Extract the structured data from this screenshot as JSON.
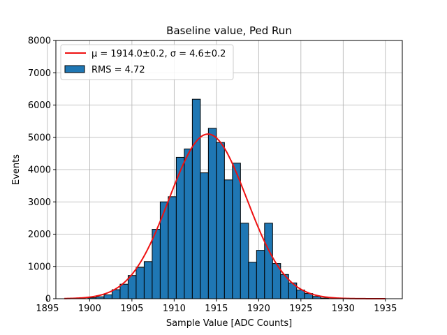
{
  "chart_data": {
    "type": "bar",
    "title": "Baseline value, Ped Run",
    "xlabel": "Sample Value [ADC Counts]",
    "ylabel": "Events",
    "xlim": [
      1896,
      1937
    ],
    "ylim": [
      0,
      8000
    ],
    "x_ticks": [
      1895,
      1900,
      1905,
      1910,
      1915,
      1920,
      1925,
      1930,
      1935
    ],
    "y_ticks": [
      0,
      1000,
      2000,
      3000,
      4000,
      5000,
      6000,
      7000,
      8000
    ],
    "x_tick_labels": [
      "1895",
      "1900",
      "1905",
      "1910",
      "1915",
      "1920",
      "1925",
      "1930",
      "1935"
    ],
    "y_tick_labels": [
      "0",
      "1000",
      "2000",
      "3000",
      "4000",
      "5000",
      "6000",
      "7000",
      "8000"
    ],
    "grid": true,
    "legend_position": "top-left",
    "legend": [
      {
        "label": "μ = 1914.0±0.2, σ = 4.6±0.2",
        "type": "line",
        "color": "#ee1111"
      },
      {
        "label": "RMS = 4.72",
        "type": "patch",
        "color": "#1f77b4"
      }
    ],
    "histogram": {
      "name": "RMS = 4.72",
      "color": "#1f77b4",
      "bin_edges": [
        1896.0,
        1896.95,
        1897.9,
        1898.85,
        1899.8,
        1900.75,
        1901.7,
        1902.65,
        1903.6,
        1904.55,
        1905.5,
        1906.45,
        1907.4,
        1908.35,
        1909.3,
        1910.25,
        1911.2,
        1912.15,
        1913.1,
        1914.05,
        1915.0,
        1915.95,
        1916.9,
        1917.85,
        1918.8,
        1919.75,
        1920.7,
        1921.65,
        1922.6,
        1923.55,
        1924.5,
        1925.45,
        1926.4,
        1927.35,
        1928.3,
        1929.25
      ],
      "counts": [
        0,
        0,
        0,
        0,
        30,
        60,
        120,
        280,
        450,
        720,
        970,
        1150,
        2150,
        3000,
        3160,
        4380,
        4640,
        6180,
        3900,
        5280,
        4840,
        3680,
        4200,
        2340,
        1130,
        1500,
        2340,
        1090,
        750,
        490,
        270,
        160,
        70,
        20,
        5
      ]
    },
    "fit": {
      "name": "μ = 1914.0±0.2, σ = 4.6±0.2",
      "color": "#ee1111",
      "mu": 1914.0,
      "sigma": 4.6,
      "amplitude": 5100,
      "x_range": [
        1897,
        1935
      ]
    }
  }
}
